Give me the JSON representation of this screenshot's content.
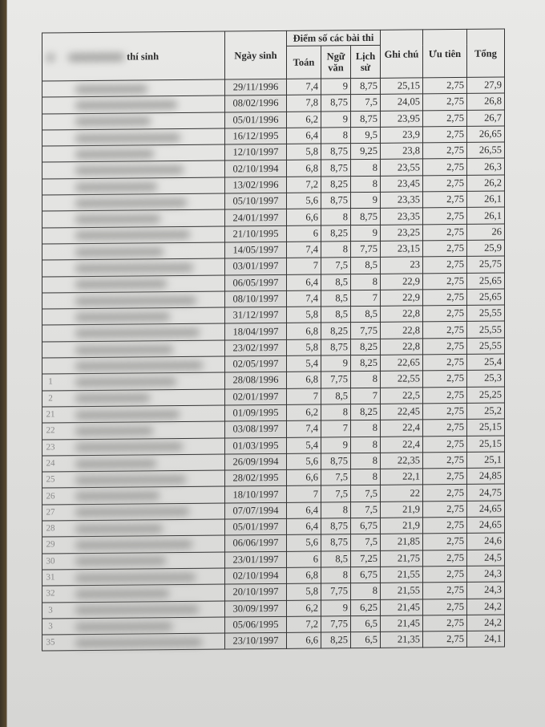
{
  "header": {
    "stt": "",
    "name": "thí sinh",
    "dob": "Ngày sinh",
    "scores_group": "Điểm số các bài thi",
    "toan": "Toán",
    "ngu_van": "Ngữ văn",
    "lich_su": "Lịch sử",
    "ghi_chu": "Ghi chú",
    "uu_tien": "Ưu tiên",
    "tong": "Tổng"
  },
  "rows": [
    {
      "stt": "",
      "dob": "29/11/1996",
      "toan": "7,4",
      "van": "9",
      "su": "8,75",
      "ghichu": "25,15",
      "uutien": "2,75",
      "tong": "27,9"
    },
    {
      "stt": "",
      "dob": "08/02/1996",
      "toan": "7,8",
      "van": "8,75",
      "su": "7,5",
      "ghichu": "24,05",
      "uutien": "2,75",
      "tong": "26,8"
    },
    {
      "stt": "",
      "dob": "05/01/1996",
      "toan": "6,2",
      "van": "9",
      "su": "8,75",
      "ghichu": "23,95",
      "uutien": "2,75",
      "tong": "26,7"
    },
    {
      "stt": "",
      "dob": "16/12/1995",
      "toan": "6,4",
      "van": "8",
      "su": "9,5",
      "ghichu": "23,9",
      "uutien": "2,75",
      "tong": "26,65"
    },
    {
      "stt": "",
      "dob": "12/10/1997",
      "toan": "5,8",
      "van": "8,75",
      "su": "9,25",
      "ghichu": "23,8",
      "uutien": "2,75",
      "tong": "26,55"
    },
    {
      "stt": "",
      "dob": "02/10/1994",
      "toan": "6,8",
      "van": "8,75",
      "su": "8",
      "ghichu": "23,55",
      "uutien": "2,75",
      "tong": "26,3"
    },
    {
      "stt": "",
      "dob": "13/02/1996",
      "toan": "7,2",
      "van": "8,25",
      "su": "8",
      "ghichu": "23,45",
      "uutien": "2,75",
      "tong": "26,2"
    },
    {
      "stt": "",
      "dob": "05/10/1997",
      "toan": "5,6",
      "van": "8,75",
      "su": "9",
      "ghichu": "23,35",
      "uutien": "2,75",
      "tong": "26,1"
    },
    {
      "stt": "",
      "dob": "24/01/1997",
      "toan": "6,6",
      "van": "8",
      "su": "8,75",
      "ghichu": "23,35",
      "uutien": "2,75",
      "tong": "26,1"
    },
    {
      "stt": "",
      "dob": "21/10/1995",
      "toan": "6",
      "van": "8,25",
      "su": "9",
      "ghichu": "23,25",
      "uutien": "2,75",
      "tong": "26"
    },
    {
      "stt": "",
      "dob": "14/05/1997",
      "toan": "7,4",
      "van": "8",
      "su": "7,75",
      "ghichu": "23,15",
      "uutien": "2,75",
      "tong": "25,9"
    },
    {
      "stt": "",
      "dob": "03/01/1997",
      "toan": "7",
      "van": "7,5",
      "su": "8,5",
      "ghichu": "23",
      "uutien": "2,75",
      "tong": "25,75"
    },
    {
      "stt": "",
      "dob": "06/05/1997",
      "toan": "6,4",
      "van": "8,5",
      "su": "8",
      "ghichu": "22,9",
      "uutien": "2,75",
      "tong": "25,65"
    },
    {
      "stt": "",
      "dob": "08/10/1997",
      "toan": "7,4",
      "van": "8,5",
      "su": "7",
      "ghichu": "22,9",
      "uutien": "2,75",
      "tong": "25,65"
    },
    {
      "stt": "",
      "dob": "31/12/1997",
      "toan": "5,8",
      "van": "8,5",
      "su": "8,5",
      "ghichu": "22,8",
      "uutien": "2,75",
      "tong": "25,55"
    },
    {
      "stt": "",
      "dob": "18/04/1997",
      "toan": "6,8",
      "van": "8,25",
      "su": "7,75",
      "ghichu": "22,8",
      "uutien": "2,75",
      "tong": "25,55"
    },
    {
      "stt": "",
      "dob": "23/02/1997",
      "toan": "5,8",
      "van": "8,75",
      "su": "8,25",
      "ghichu": "22,8",
      "uutien": "2,75",
      "tong": "25,55"
    },
    {
      "stt": "",
      "dob": "02/05/1997",
      "toan": "5,4",
      "van": "9",
      "su": "8,25",
      "ghichu": "22,65",
      "uutien": "2,75",
      "tong": "25,4"
    },
    {
      "stt": "1",
      "dob": "28/08/1996",
      "toan": "6,8",
      "van": "7,75",
      "su": "8",
      "ghichu": "22,55",
      "uutien": "2,75",
      "tong": "25,3"
    },
    {
      "stt": "2",
      "dob": "02/01/1997",
      "toan": "7",
      "van": "8,5",
      "su": "7",
      "ghichu": "22,5",
      "uutien": "2,75",
      "tong": "25,25"
    },
    {
      "stt": "21",
      "dob": "01/09/1995",
      "toan": "6,2",
      "van": "8",
      "su": "8,25",
      "ghichu": "22,45",
      "uutien": "2,75",
      "tong": "25,2"
    },
    {
      "stt": "22",
      "dob": "03/08/1997",
      "toan": "7,4",
      "van": "7",
      "su": "8",
      "ghichu": "22,4",
      "uutien": "2,75",
      "tong": "25,15"
    },
    {
      "stt": "23",
      "dob": "01/03/1995",
      "toan": "5,4",
      "van": "9",
      "su": "8",
      "ghichu": "22,4",
      "uutien": "2,75",
      "tong": "25,15"
    },
    {
      "stt": "24",
      "dob": "26/09/1994",
      "toan": "5,6",
      "van": "8,75",
      "su": "8",
      "ghichu": "22,35",
      "uutien": "2,75",
      "tong": "25,1"
    },
    {
      "stt": "25",
      "dob": "28/02/1995",
      "toan": "6,6",
      "van": "7,5",
      "su": "8",
      "ghichu": "22,1",
      "uutien": "2,75",
      "tong": "24,85"
    },
    {
      "stt": "26",
      "dob": "18/10/1997",
      "toan": "7",
      "van": "7,5",
      "su": "7,5",
      "ghichu": "22",
      "uutien": "2,75",
      "tong": "24,75"
    },
    {
      "stt": "27",
      "dob": "07/07/1994",
      "toan": "6,4",
      "van": "8",
      "su": "7,5",
      "ghichu": "21,9",
      "uutien": "2,75",
      "tong": "24,65"
    },
    {
      "stt": "28",
      "dob": "05/01/1997",
      "toan": "6,4",
      "van": "8,75",
      "su": "6,75",
      "ghichu": "21,9",
      "uutien": "2,75",
      "tong": "24,65"
    },
    {
      "stt": "29",
      "dob": "06/06/1997",
      "toan": "5,6",
      "van": "8,75",
      "su": "7,5",
      "ghichu": "21,85",
      "uutien": "2,75",
      "tong": "24,6"
    },
    {
      "stt": "30",
      "dob": "23/01/1997",
      "toan": "6",
      "van": "8,5",
      "su": "7,25",
      "ghichu": "21,75",
      "uutien": "2,75",
      "tong": "24,5"
    },
    {
      "stt": "31",
      "dob": "02/10/1994",
      "toan": "6,8",
      "van": "8",
      "su": "6,75",
      "ghichu": "21,55",
      "uutien": "2,75",
      "tong": "24,3"
    },
    {
      "stt": "32",
      "dob": "20/10/1997",
      "toan": "5,8",
      "van": "7,75",
      "su": "8",
      "ghichu": "21,55",
      "uutien": "2,75",
      "tong": "24,3"
    },
    {
      "stt": "3",
      "dob": "30/09/1997",
      "toan": "6,2",
      "van": "9",
      "su": "6,25",
      "ghichu": "21,45",
      "uutien": "2,75",
      "tong": "24,2"
    },
    {
      "stt": "3",
      "dob": "05/06/1995",
      "toan": "7,2",
      "van": "7,75",
      "su": "6,5",
      "ghichu": "21,45",
      "uutien": "2,75",
      "tong": "24,2"
    },
    {
      "stt": "35",
      "dob": "23/10/1997",
      "toan": "6,6",
      "van": "8,25",
      "su": "6,5",
      "ghichu": "21,35",
      "uutien": "2,75",
      "tong": "24,1"
    }
  ]
}
